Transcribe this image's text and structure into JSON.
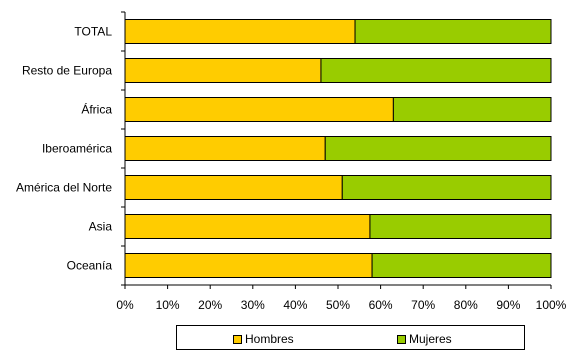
{
  "chart_data": {
    "type": "bar",
    "orientation": "horizontal",
    "stacked": "percent",
    "categories": [
      "TOTAL",
      "Resto de Europa",
      "África",
      "Iberoamérica",
      "América del Norte",
      "Asia",
      "Oceanía"
    ],
    "series": [
      {
        "name": "Hombres",
        "color": "#ffcc00",
        "values": [
          54,
          46,
          63,
          47,
          51,
          57.5,
          58
        ]
      },
      {
        "name": "Mujeres",
        "color": "#99cc00",
        "values": [
          46,
          54,
          37,
          53,
          49,
          42.5,
          42
        ]
      }
    ],
    "x_ticks": [
      "0%",
      "10%",
      "20%",
      "30%",
      "40%",
      "50%",
      "60%",
      "70%",
      "80%",
      "90%",
      "100%"
    ],
    "xlim": [
      0,
      100
    ],
    "grid": false,
    "legend_position": "bottom"
  }
}
